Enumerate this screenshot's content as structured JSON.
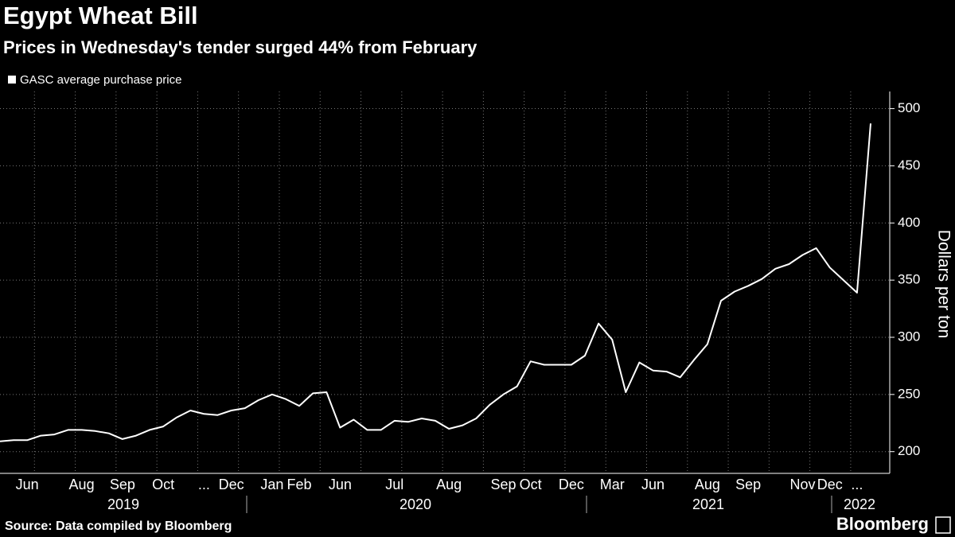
{
  "chart_data": {
    "type": "line",
    "title": "Egypt Wheat Bill",
    "subtitle": "Prices in Wednesday's tender surged 44% from February",
    "y_axis_label": "Dollars per ton",
    "source": "Source: Data compiled by Bloomberg",
    "brand": "Bloomberg",
    "categories": [
      null,
      null,
      "Jun",
      null,
      null,
      null,
      "Aug",
      null,
      null,
      "Sep",
      null,
      null,
      "Oct",
      null,
      null,
      "...",
      null,
      "Dec",
      null,
      null,
      "Jan",
      null,
      "Feb",
      null,
      null,
      "Jun",
      null,
      null,
      null,
      "Jul",
      null,
      null,
      null,
      "Aug",
      null,
      null,
      null,
      "Sep",
      null,
      "Oct",
      null,
      null,
      "Dec",
      null,
      null,
      "Mar",
      null,
      null,
      "Jun",
      null,
      null,
      null,
      "Aug",
      null,
      null,
      "Sep",
      null,
      null,
      null,
      "Nov",
      null,
      "Dec",
      null,
      "...",
      null
    ],
    "x_group_labels": [
      "2019",
      "2020",
      "2021",
      "2022"
    ],
    "series": [
      {
        "name": "GASC average purchase price",
        "color": "#ffffff",
        "values": [
          209,
          210,
          210,
          214,
          215,
          219,
          219,
          218,
          216,
          211,
          214,
          219,
          222,
          230,
          236,
          233,
          232,
          236,
          238,
          245,
          250,
          246,
          240,
          251,
          252,
          221,
          228,
          219,
          219,
          227,
          226,
          229,
          227,
          220,
          223,
          229,
          241,
          250,
          257,
          279,
          276,
          276,
          276,
          284,
          312,
          298,
          252,
          278,
          271,
          270,
          265,
          280,
          294,
          332,
          340,
          345,
          351,
          360,
          364,
          372,
          378,
          361,
          350,
          339,
          487
        ]
      }
    ],
    "ylim": [
      181,
      515
    ],
    "yticks": [
      200,
      250,
      300,
      350,
      400,
      450,
      500
    ],
    "grid": true,
    "y_axis_side": "right"
  }
}
